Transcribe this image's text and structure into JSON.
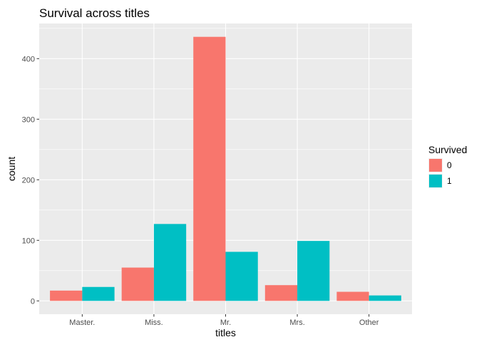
{
  "chart_data": {
    "type": "bar",
    "title": "Survival across titles",
    "xlabel": "titles",
    "ylabel": "count",
    "categories": [
      "Master.",
      "Miss.",
      "Mr.",
      "Mrs.",
      "Other"
    ],
    "series": [
      {
        "name": "0",
        "values": [
          17,
          55,
          436,
          26,
          15
        ],
        "color": "#F8766D"
      },
      {
        "name": "1",
        "values": [
          23,
          127,
          81,
          99,
          9
        ],
        "color": "#00BFC4"
      }
    ],
    "ylim": [
      -22,
      458
    ],
    "yticks": [
      0,
      100,
      200,
      300,
      400
    ],
    "grid": true,
    "legend": {
      "title": "Survived",
      "position": "right"
    },
    "background": "#EBEBEB",
    "gridline_color": "#FFFFFF"
  }
}
